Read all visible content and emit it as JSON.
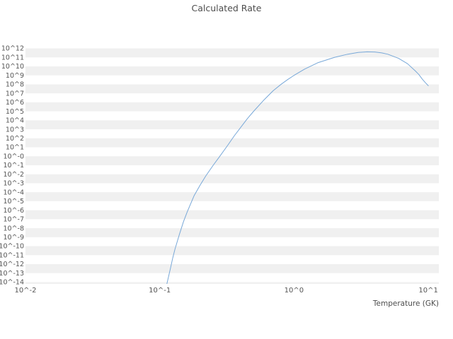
{
  "chart_data": {
    "type": "line",
    "title": "Calculated Rate",
    "xlabel": "Temperature (GK)",
    "ylabel": "",
    "x_scale": "log",
    "y_scale": "log",
    "x_range_log10": [
      -2,
      1.08
    ],
    "y_range_log10": [
      -14.2,
      12.2
    ],
    "grid": "horizontal-bands",
    "legend": "none",
    "x_ticks": {
      "log_values": [
        -2,
        -1,
        0,
        1
      ],
      "labels": [
        "10^-2",
        "10^-1",
        "10^0",
        "10^1"
      ]
    },
    "y_ticks": {
      "start_log_value": 12,
      "step": -1,
      "labels": [
        "10^12",
        "10^11",
        "10^10",
        "10^9",
        "10^8",
        "10^7",
        "10^6",
        "10^5",
        "10^4",
        "10^3",
        "10^2",
        "10^1",
        "10^-0",
        "10^-1",
        "10^-2",
        "10^-3",
        "10^-4",
        "10^-5",
        "10^-6",
        "10^-7",
        "10^-8",
        "10^-9",
        "10^-10",
        "10^-11",
        "10^-12",
        "10^-13",
        "10^-14"
      ]
    },
    "series": [
      {
        "name": "calculated-rate",
        "color": "#78a8d8",
        "x_temperature_GK": [
          0.113,
          0.12,
          0.125,
          0.13,
          0.14,
          0.15,
          0.16,
          0.18,
          0.2,
          0.22,
          0.25,
          0.28,
          0.32,
          0.36,
          0.4,
          0.45,
          0.5,
          0.6,
          0.7,
          0.8,
          0.9,
          1.0,
          1.2,
          1.5,
          2.0,
          2.5,
          3.0,
          3.5,
          4.0,
          4.5,
          5.0,
          6.0,
          7.0,
          8.0,
          8.5,
          9.0,
          9.5,
          10.0
        ],
        "log10_rate": [
          -14.2,
          -12.5,
          -11.3,
          -10.3,
          -8.7,
          -7.3,
          -6.2,
          -4.4,
          -3.2,
          -2.2,
          -1.0,
          0.0,
          1.2,
          2.3,
          3.2,
          4.2,
          5.0,
          6.3,
          7.3,
          8.0,
          8.55,
          9.0,
          9.7,
          10.4,
          11.0,
          11.35,
          11.55,
          11.62,
          11.6,
          11.5,
          11.35,
          10.9,
          10.3,
          9.5,
          9.1,
          8.6,
          8.2,
          7.85
        ]
      }
    ],
    "colors": {
      "band": "#f0f0f0",
      "tick_label": "#555555",
      "title": "#4d4d4d",
      "line": "#78a8d8"
    }
  }
}
